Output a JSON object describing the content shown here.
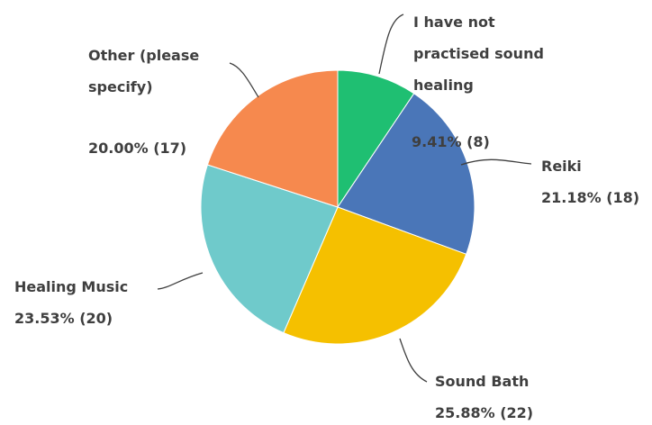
{
  "chart_data": {
    "type": "pie",
    "title": "",
    "start_angle_deg": 0,
    "direction": "clockwise",
    "slices": [
      {
        "label": [
          "I have not",
          "practised sound",
          "healing"
        ],
        "percent_text": "9.41% (8)",
        "value": 9.41,
        "count": 8,
        "color": "#1fbf72"
      },
      {
        "label": [
          "Reiki"
        ],
        "percent_text": "21.18% (18)",
        "value": 21.18,
        "count": 18,
        "color": "#4a76b8"
      },
      {
        "label": [
          "Sound Bath"
        ],
        "percent_text": "25.88% (22)",
        "value": 25.88,
        "count": 22,
        "color": "#f5c000"
      },
      {
        "label": [
          "Healing Music"
        ],
        "percent_text": "23.53% (20)",
        "value": 23.53,
        "count": 20,
        "color": "#6fcacb"
      },
      {
        "label": [
          "Other (please",
          "specify)"
        ],
        "percent_text": "20.00% (17)",
        "value": 20.0,
        "count": 17,
        "color": "#f6894e"
      }
    ]
  }
}
